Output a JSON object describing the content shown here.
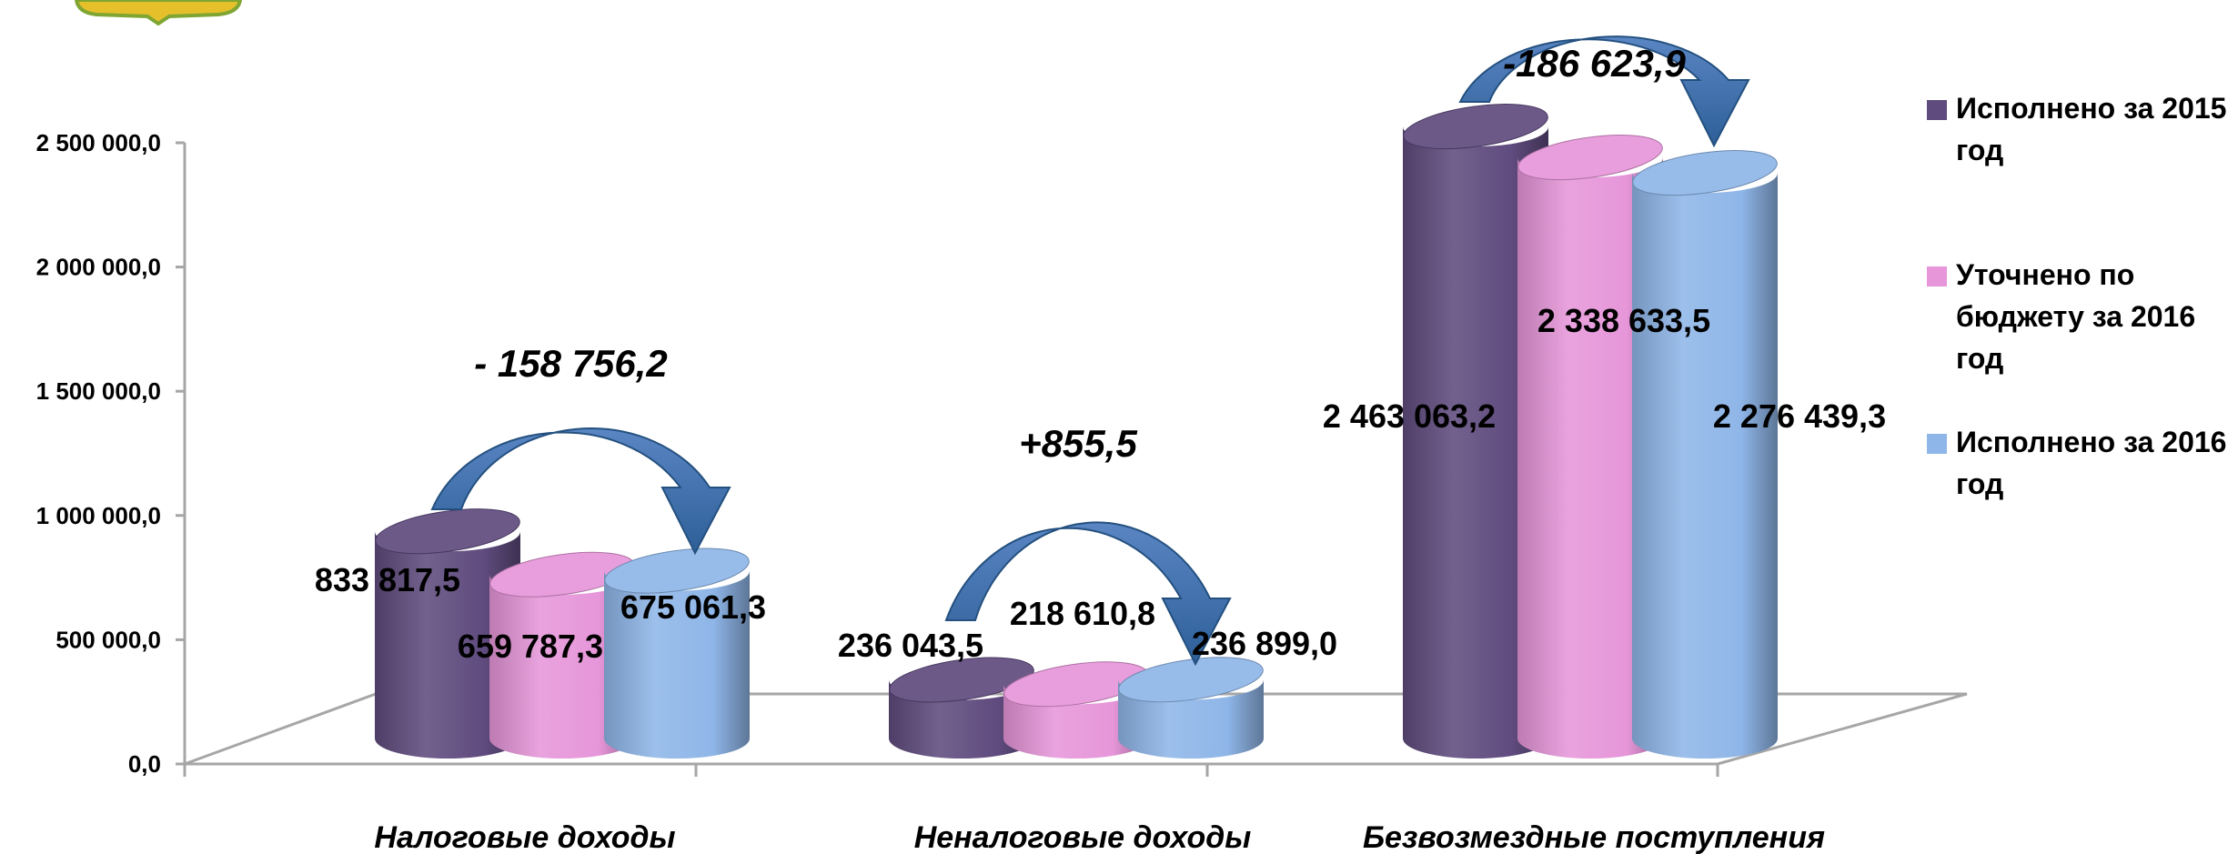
{
  "chart_data": {
    "type": "bar",
    "style": "3d-cylinder",
    "categories": [
      "Налоговые доходы",
      "Неналоговые доходы",
      "Безвозмездные поступления"
    ],
    "series": [
      {
        "name": "Исполнено за 2015 год",
        "color": "#5F4B7E",
        "values": [
          833817.5,
          236043.5,
          2463063.2
        ],
        "labels": [
          "833 817,5",
          "236 043,5",
          "2 463 063,2"
        ]
      },
      {
        "name": "Уточнено по бюджету за 2016 год",
        "color": "#E696D9",
        "values": [
          659787.3,
          218610.8,
          2338633.5
        ],
        "labels": [
          "659 787,3",
          "218 610,8",
          "2 338 633,5"
        ]
      },
      {
        "name": "Исполнено за 2016 год",
        "color": "#8FB6E8",
        "values": [
          675061.3,
          236899.0,
          2276439.3
        ],
        "labels": [
          "675 061,3",
          "236 899,0",
          "2 276 439,3"
        ]
      }
    ],
    "differences": [
      "- 158 756,2",
      "+855,5",
      "-186 623,9"
    ],
    "ylim": [
      0,
      2500000
    ],
    "yticks": [
      0,
      500000,
      1000000,
      1500000,
      2000000,
      2500000
    ],
    "ytick_labels": [
      "0,0",
      "500 000,0",
      "1 000 000,0",
      "1 500 000,0",
      "2 000 000,0",
      "2 500 000,0"
    ],
    "title": "",
    "xlabel": "",
    "ylabel": "",
    "legend_position": "right",
    "grid": false
  }
}
